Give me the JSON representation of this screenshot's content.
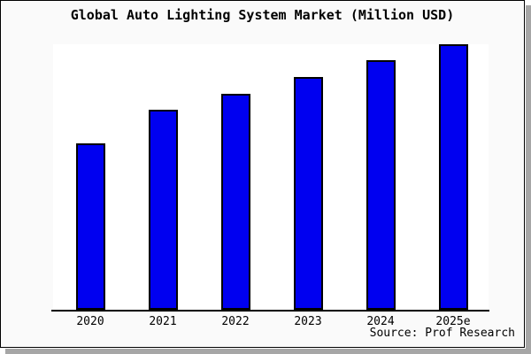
{
  "chart_data": {
    "type": "bar",
    "title": "Global Auto Lighting System Market (Million USD)",
    "categories": [
      "2020",
      "2021",
      "2022",
      "2023",
      "2024",
      "2025e"
    ],
    "values": [
      62.8,
      75.2,
      81.5,
      87.8,
      94.0,
      100
    ],
    "value_note": "no y-axis or data labels shown; values are relative bar heights with tallest bar (2025e) = 100",
    "xlabel": "",
    "ylabel": "",
    "ylim": [
      0,
      100
    ],
    "grid": false,
    "legend": false,
    "y_axis_visible": false,
    "source": "Source: Prof Research",
    "colors": {
      "bar_fill": "#0000F0",
      "bar_border": "#000000",
      "figure_background": "#FAFAFA",
      "plot_background": "#FFFFFF",
      "figure_border": "#000000",
      "shadow": "#A6A6A6",
      "text": "#000000"
    }
  }
}
